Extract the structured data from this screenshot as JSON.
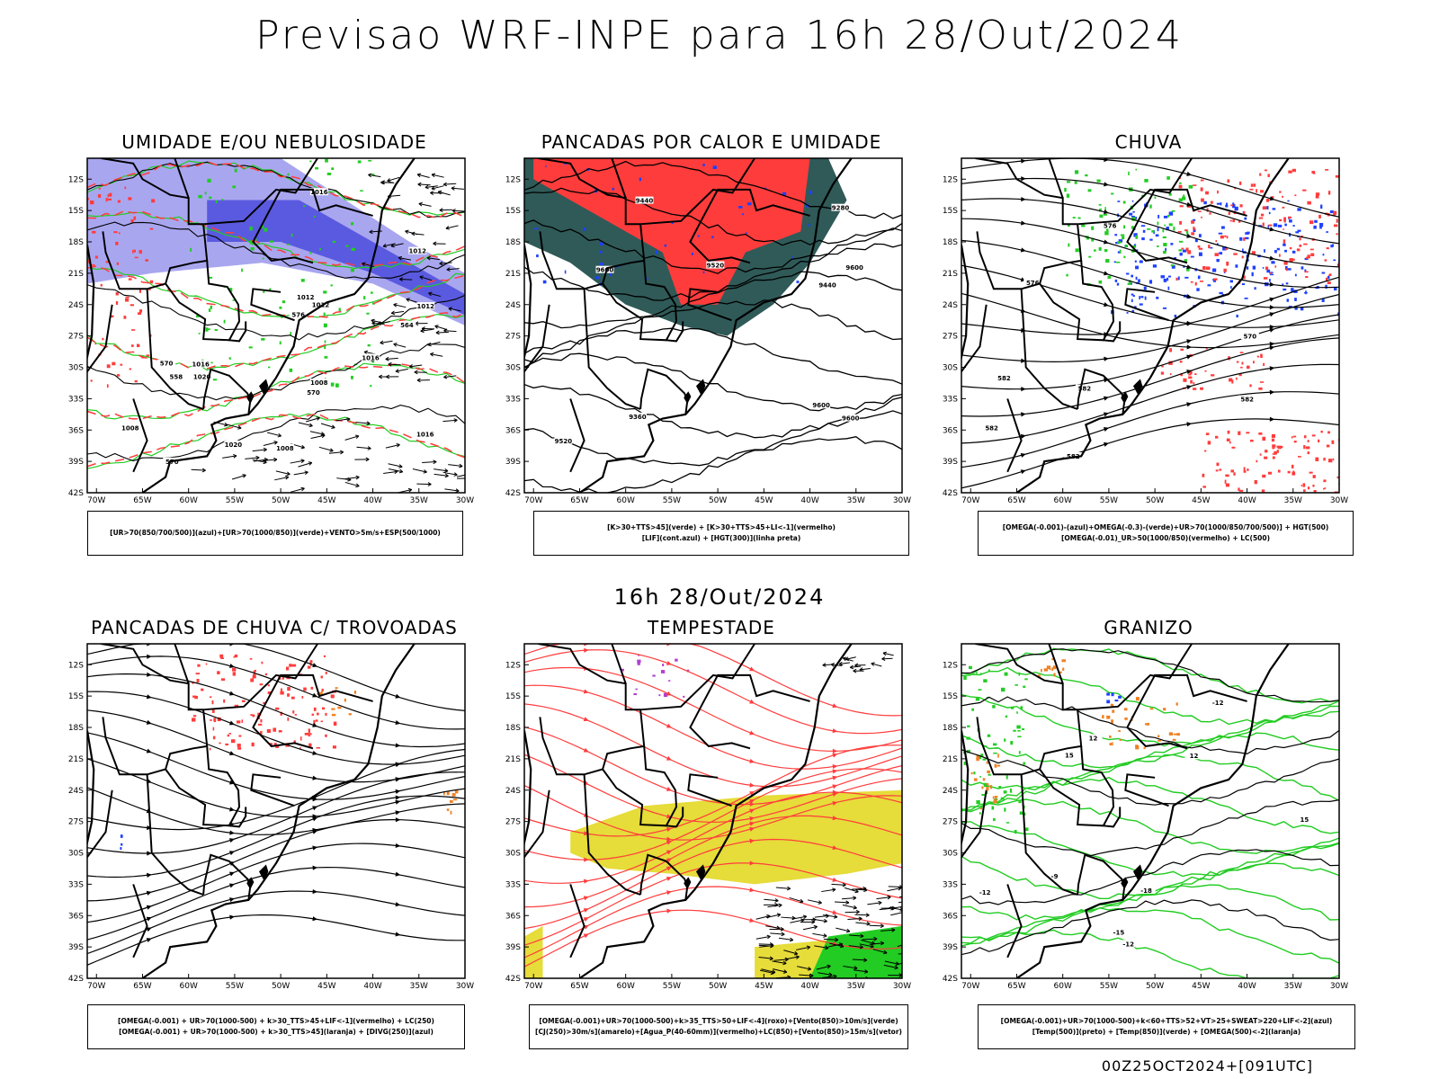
{
  "title": "Previsao WRF-INPE  para 16h 28/Out/2024",
  "subtitle": "16h 28/Out/2024",
  "footer": "00Z25OCT2024+[091UTC]",
  "axes": {
    "lat_labels": [
      "12S",
      "15S",
      "18S",
      "21S",
      "24S",
      "27S",
      "30S",
      "33S",
      "36S",
      "39S",
      "42S"
    ],
    "lon_labels": [
      "70W",
      "65W",
      "60W",
      "55W",
      "50W",
      "45W",
      "40W",
      "35W",
      "30W"
    ]
  },
  "colors": {
    "blue_light": "#a9a6f0",
    "blue_dark": "#5a5ae0",
    "green": "#22cc22",
    "red": "#ff3c3c",
    "dark_teal": "#2f5a58",
    "yellow": "#e6dc3a",
    "orange": "#f08020",
    "purple": "#b040d0",
    "blue": "#1e40ff"
  },
  "chart_data": [
    {
      "type": "map",
      "title": "UMIDADE E/OU NEBULOSIDADE",
      "legend": [
        "[UR>70(850/700/500)](azul)+[UR>70(1000/850)](verde)+VENTO>5m/s+ESP(500/1000)"
      ],
      "contour_labels": [
        "1008",
        "1008",
        "1008",
        "1012",
        "1012",
        "1016",
        "1016",
        "1020",
        "1012",
        "1016",
        "1020",
        "1016",
        "1012",
        "576",
        "570",
        "564",
        "558",
        "570",
        "570"
      ]
    },
    {
      "type": "map",
      "title": "PANCADAS POR CALOR E UMIDADE",
      "legend": [
        "[K>30+TTS>45](verde) + [K>30+TTS>45+LI<-1](vermelho)",
        "[LIF](cont.azul) + [HGT(300)](linha preta)"
      ],
      "contour_labels": [
        "9600",
        "9600",
        "9600",
        "9520",
        "9520",
        "9440",
        "9440",
        "9360",
        "9280",
        "9600"
      ]
    },
    {
      "type": "map",
      "title": "CHUVA",
      "legend": [
        "[OMEGA(-0.001)-(azul)+OMEGA(-0.3)-(verde)+UR>70(1000/850/700/500)] + HGT(500)",
        "[OMEGA(-0.01)_UR>50(1000/850)(vermelho) + LC(500)"
      ],
      "contour_labels": [
        "582",
        "582",
        "582",
        "576",
        "576",
        "570",
        "582",
        "582"
      ]
    },
    {
      "type": "map",
      "title": "PANCADAS DE CHUVA C/ TROVOADAS",
      "legend": [
        "[OMEGA(-0.001) + UR>70(1000-500) + k>30_TTS>45+LIF<-1](vermelho) + LC(250)",
        "[OMEGA(-0.001) + UR>70(1000-500) + k>30_TTS>45](laranja) + [DIVG(250)](azul)"
      ],
      "contour_labels": []
    },
    {
      "type": "map",
      "title": "TEMPESTADE",
      "legend": [
        "[OMEGA(-0.001)+UR>70(1000-500)+k>35_TTS>50+LIF<-4](roxo)+[Vento(850)>10m/s](verde)",
        "[CJ(250)>30m/s](amarelo)+[Agua_P(40-60mm)](vermelho)+LC(850)+[Vento(850)>15m/s](vetor)"
      ],
      "contour_labels": []
    },
    {
      "type": "map",
      "title": "GRANIZO",
      "legend": [
        "[OMEGA(-0.001)+UR>70(1000-500)+k<60+TTS>52+VT>25+SWEAT>220+LIF<-2](azul)",
        "[Temp(500)](preto) + [Temp(850)](verde) + [OMEGA(500)<-2](laranja)"
      ],
      "contour_labels": [
        "-9",
        "-12",
        "-12",
        "-12",
        "-15",
        "-18",
        "15",
        "15",
        "12",
        "12"
      ]
    }
  ]
}
